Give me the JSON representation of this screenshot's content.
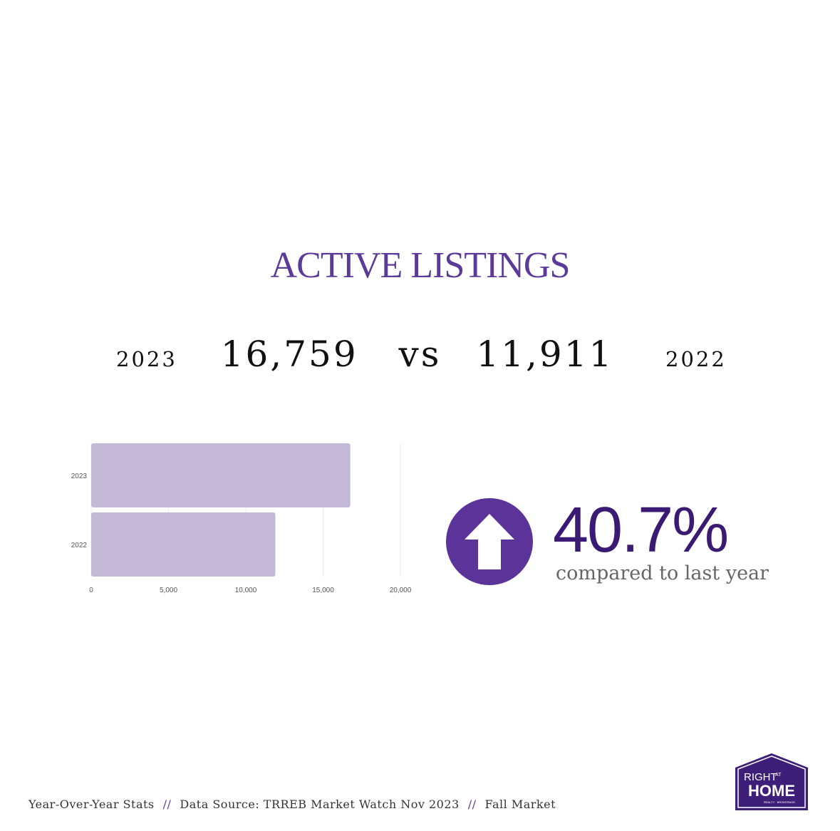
{
  "title": "ACTIVE LISTINGS",
  "comparison": {
    "year_left": "2023",
    "value_left": "16,759",
    "vs": "vs",
    "value_right": "11,911",
    "year_right": "2022"
  },
  "change": {
    "value": "40.7%",
    "caption": "compared to last year",
    "icon": "up-arrow-icon"
  },
  "footer": {
    "part1": "Year-Over-Year Stats",
    "sep1": "//",
    "part2": "Data Source: TRREB Market Watch Nov 2023",
    "sep2": "//",
    "part3": "Fall Market"
  },
  "logo": {
    "line1": "RIGHT",
    "line1b": "AT",
    "line2": "HOME",
    "line3": "REALTY · BROKERAGE"
  },
  "colors": {
    "accent": "#5b3a99",
    "bar": "#c3b9d7",
    "circle": "#5b3399",
    "pct": "#3a1a72"
  },
  "chart_data": {
    "type": "bar",
    "orientation": "horizontal",
    "categories": [
      "2023",
      "2022"
    ],
    "values": [
      16759,
      11911
    ],
    "xlim": [
      0,
      20000
    ],
    "xticks": [
      0,
      5000,
      10000,
      15000,
      20000
    ],
    "xtick_labels": [
      "0",
      "5,000",
      "10,000",
      "15,000",
      "20,000"
    ],
    "grid": true,
    "legend": "none"
  }
}
